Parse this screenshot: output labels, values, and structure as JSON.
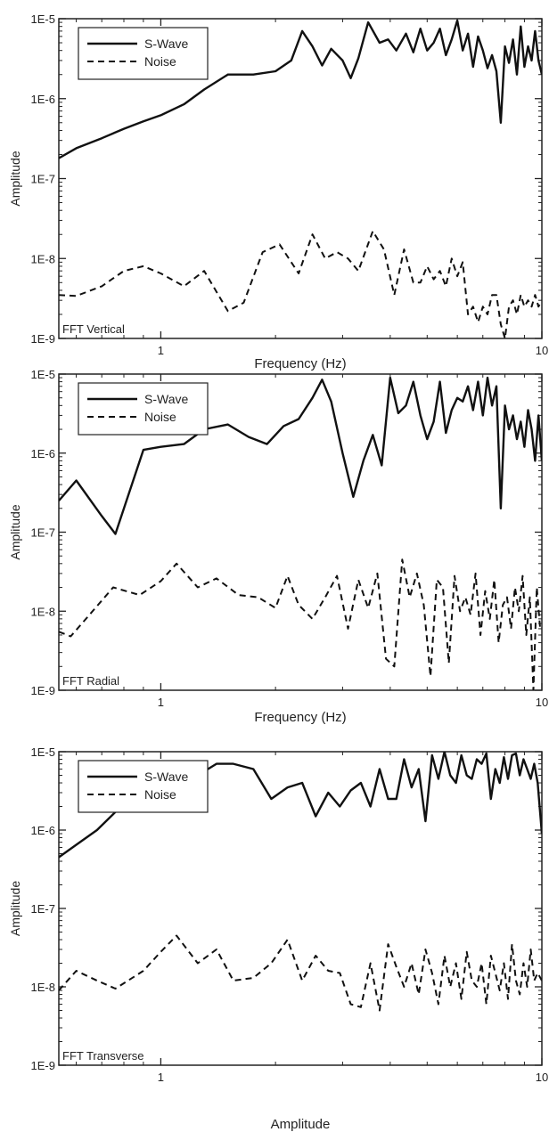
{
  "chart_data": [
    {
      "type": "line",
      "panel_label": "FFT Vertical",
      "xlabel": "Frequency (Hz)",
      "ylabel": "Amplitude",
      "xscale": "log",
      "yscale": "log",
      "xlim": [
        0.54,
        10
      ],
      "ylim": [
        1e-09,
        1e-05
      ],
      "x_ticks": [
        {
          "v": 1,
          "label": "1"
        },
        {
          "v": 10,
          "label": "10"
        }
      ],
      "y_ticks": [
        {
          "v": 1e-05,
          "label": "1E-5"
        },
        {
          "v": 1e-06,
          "label": "1E-6"
        },
        {
          "v": 1e-07,
          "label": "1E-7"
        },
        {
          "v": 1e-08,
          "label": "1E-8"
        },
        {
          "v": 1e-09,
          "label": "1E-9"
        }
      ],
      "legend_position": "top-left",
      "series": [
        {
          "name": "S-Wave",
          "style": "solid",
          "x": [
            0.54,
            0.6,
            0.7,
            0.8,
            0.9,
            1.0,
            1.15,
            1.3,
            1.5,
            1.75,
            2.0,
            2.2,
            2.35,
            2.5,
            2.65,
            2.8,
            3.0,
            3.15,
            3.3,
            3.5,
            3.75,
            3.95,
            4.15,
            4.4,
            4.6,
            4.8,
            5.0,
            5.2,
            5.4,
            5.6,
            5.8,
            6.0,
            6.2,
            6.4,
            6.6,
            6.8,
            7.0,
            7.2,
            7.4,
            7.6,
            7.8,
            8.0,
            8.2,
            8.4,
            8.6,
            8.8,
            9.0,
            9.2,
            9.4,
            9.6,
            9.8,
            10.0
          ],
          "y": [
            1.8e-07,
            2.4e-07,
            3.2e-07,
            4.2e-07,
            5.2e-07,
            6.2e-07,
            8.5e-07,
            1.3e-06,
            2e-06,
            2e-06,
            2.2e-06,
            3e-06,
            7e-06,
            4.5e-06,
            2.6e-06,
            4.2e-06,
            3e-06,
            1.8e-06,
            3.2e-06,
            9e-06,
            5e-06,
            5.5e-06,
            4e-06,
            6.5e-06,
            3.8e-06,
            7.5e-06,
            4e-06,
            5e-06,
            7.5e-06,
            3.5e-06,
            5.5e-06,
            9.5e-06,
            4e-06,
            6.5e-06,
            2.5e-06,
            6e-06,
            4e-06,
            2.4e-06,
            3.5e-06,
            2.2e-06,
            5e-07,
            4.5e-06,
            2.8e-06,
            5.5e-06,
            2e-06,
            8e-06,
            2.5e-06,
            4.5e-06,
            3e-06,
            7e-06,
            3e-06,
            2e-06
          ]
        },
        {
          "name": "Noise",
          "style": "dashed",
          "x": [
            0.54,
            0.6,
            0.7,
            0.8,
            0.9,
            1.0,
            1.15,
            1.3,
            1.5,
            1.65,
            1.85,
            2.05,
            2.3,
            2.5,
            2.7,
            2.9,
            3.1,
            3.3,
            3.6,
            3.85,
            4.1,
            4.35,
            4.6,
            4.8,
            5.0,
            5.2,
            5.4,
            5.6,
            5.8,
            6.0,
            6.2,
            6.4,
            6.6,
            6.8,
            7.0,
            7.2,
            7.4,
            7.6,
            7.8,
            8.0,
            8.2,
            8.4,
            8.6,
            8.8,
            9.0,
            9.2,
            9.4,
            9.6,
            9.8,
            10.0
          ],
          "y": [
            3.5e-09,
            3.4e-09,
            4.5e-09,
            7e-09,
            8e-09,
            6.5e-09,
            4.5e-09,
            7e-09,
            2.2e-09,
            2.8e-09,
            1.2e-08,
            1.5e-08,
            6.5e-09,
            2e-08,
            1e-08,
            1.2e-08,
            1e-08,
            7e-09,
            2.2e-08,
            1.3e-08,
            3.5e-09,
            1.3e-08,
            5e-09,
            5e-09,
            8e-09,
            5.5e-09,
            7e-09,
            4.5e-09,
            1e-08,
            6e-09,
            9e-09,
            2e-09,
            2.5e-09,
            1.6e-09,
            2.5e-09,
            2e-09,
            3.5e-09,
            3.5e-09,
            1.5e-09,
            1e-09,
            2.5e-09,
            3e-09,
            2e-09,
            3.5e-09,
            2.5e-09,
            3e-09,
            2.5e-09,
            3.5e-09,
            2.5e-09,
            3e-09
          ]
        }
      ]
    },
    {
      "type": "line",
      "panel_label": "FFT Radial",
      "xlabel": "Frequency (Hz)",
      "ylabel": "Amplitude",
      "xscale": "log",
      "yscale": "log",
      "xlim": [
        0.54,
        10
      ],
      "ylim": [
        1e-09,
        1e-05
      ],
      "x_ticks": [
        {
          "v": 1,
          "label": "1"
        },
        {
          "v": 10,
          "label": "10"
        }
      ],
      "y_ticks": [
        {
          "v": 1e-05,
          "label": "1E-5"
        },
        {
          "v": 1e-06,
          "label": "1E-6"
        },
        {
          "v": 1e-07,
          "label": "1E-7"
        },
        {
          "v": 1e-08,
          "label": "1E-8"
        },
        {
          "v": 1e-09,
          "label": "1E-9"
        }
      ],
      "legend_position": "top-left",
      "series": [
        {
          "name": "S-Wave",
          "style": "solid",
          "x": [
            0.54,
            0.6,
            0.7,
            0.76,
            0.9,
            1.0,
            1.15,
            1.3,
            1.5,
            1.7,
            1.9,
            2.1,
            2.3,
            2.5,
            2.65,
            2.8,
            3.0,
            3.2,
            3.4,
            3.6,
            3.8,
            4.0,
            4.2,
            4.4,
            4.6,
            4.8,
            5.0,
            5.2,
            5.4,
            5.6,
            5.8,
            6.0,
            6.2,
            6.4,
            6.6,
            6.8,
            7.0,
            7.2,
            7.4,
            7.6,
            7.8,
            8.0,
            8.2,
            8.4,
            8.6,
            8.8,
            9.0,
            9.2,
            9.4,
            9.6,
            9.8,
            10.0
          ],
          "y": [
            2.5e-07,
            4.5e-07,
            1.6e-07,
            9.5e-08,
            1.1e-06,
            1.2e-06,
            1.3e-06,
            2e-06,
            2.3e-06,
            1.6e-06,
            1.3e-06,
            2.2e-06,
            2.7e-06,
            5e-06,
            8.5e-06,
            4.5e-06,
            1e-06,
            2.8e-07,
            8e-07,
            1.7e-06,
            7e-07,
            9e-06,
            3.2e-06,
            4e-06,
            8e-06,
            3e-06,
            1.5e-06,
            2.5e-06,
            8e-06,
            1.8e-06,
            3.5e-06,
            5e-06,
            4.5e-06,
            7e-06,
            3.5e-06,
            8e-06,
            3e-06,
            9e-06,
            4e-06,
            7e-06,
            2e-07,
            4e-06,
            2e-06,
            3e-06,
            1.5e-06,
            2.5e-06,
            1.2e-06,
            3.5e-06,
            2e-06,
            8e-07,
            3e-06,
            8e-07
          ]
        },
        {
          "name": "Noise",
          "style": "dashed",
          "x": [
            0.54,
            0.58,
            0.65,
            0.75,
            0.88,
            1.0,
            1.1,
            1.25,
            1.4,
            1.6,
            1.8,
            2.0,
            2.15,
            2.3,
            2.5,
            2.7,
            2.9,
            3.1,
            3.3,
            3.5,
            3.7,
            3.9,
            4.1,
            4.3,
            4.5,
            4.7,
            4.9,
            5.1,
            5.3,
            5.5,
            5.7,
            5.9,
            6.1,
            6.3,
            6.5,
            6.7,
            6.9,
            7.1,
            7.3,
            7.5,
            7.7,
            7.9,
            8.1,
            8.3,
            8.5,
            8.7,
            8.9,
            9.1,
            9.3,
            9.5,
            9.7,
            9.9
          ],
          "y": [
            5.5e-09,
            4.8e-09,
            9e-09,
            2e-08,
            1.6e-08,
            2.4e-08,
            4e-08,
            2e-08,
            2.6e-08,
            1.6e-08,
            1.5e-08,
            1.1e-08,
            2.8e-08,
            1.2e-08,
            8e-09,
            1.5e-08,
            2.8e-08,
            6e-09,
            2.5e-08,
            1.1e-08,
            3e-08,
            2.5e-09,
            2e-09,
            4.5e-08,
            1.5e-08,
            3e-08,
            1.2e-08,
            1.5e-09,
            2.5e-08,
            2e-08,
            2.2e-09,
            2.8e-08,
            1e-08,
            1.5e-08,
            9e-09,
            3e-08,
            5e-09,
            1.8e-08,
            8e-09,
            2.5e-08,
            4e-09,
            1.2e-08,
            1.5e-08,
            6e-09,
            2e-08,
            1e-08,
            2.8e-08,
            5e-09,
            1.5e-08,
            1e-09,
            2e-08,
            6e-09
          ]
        }
      ]
    },
    {
      "type": "line",
      "panel_label": "FFT Transverse",
      "xlabel": "Amplitude",
      "ylabel": "Amplitude",
      "xscale": "log",
      "yscale": "log",
      "xlim": [
        0.54,
        10
      ],
      "ylim": [
        1e-09,
        1e-05
      ],
      "x_ticks": [
        {
          "v": 1,
          "label": "1"
        },
        {
          "v": 10,
          "label": "10"
        }
      ],
      "y_ticks": [
        {
          "v": 1e-05,
          "label": "1E-5"
        },
        {
          "v": 1e-06,
          "label": "1E-6"
        },
        {
          "v": 1e-07,
          "label": "1E-7"
        },
        {
          "v": 1e-08,
          "label": "1E-8"
        },
        {
          "v": 1e-09,
          "label": "1E-9"
        }
      ],
      "legend_position": "top-left",
      "series": [
        {
          "name": "S-Wave",
          "style": "solid",
          "x": [
            0.54,
            0.6,
            0.68,
            0.76,
            0.9,
            1.0,
            1.1,
            1.25,
            1.4,
            1.55,
            1.75,
            1.95,
            2.15,
            2.35,
            2.55,
            2.75,
            2.95,
            3.15,
            3.35,
            3.55,
            3.75,
            3.95,
            4.15,
            4.35,
            4.55,
            4.75,
            4.95,
            5.15,
            5.35,
            5.55,
            5.75,
            5.95,
            6.15,
            6.35,
            6.55,
            6.75,
            6.95,
            7.15,
            7.35,
            7.55,
            7.75,
            7.95,
            8.15,
            8.35,
            8.55,
            8.75,
            8.95,
            9.15,
            9.35,
            9.55,
            9.75,
            10.0
          ],
          "y": [
            4.5e-07,
            6.5e-07,
            1e-06,
            1.7e-06,
            2.5e-06,
            3e-06,
            4e-06,
            5e-06,
            7e-06,
            7e-06,
            6e-06,
            2.5e-06,
            3.5e-06,
            4e-06,
            1.5e-06,
            3e-06,
            2e-06,
            3.2e-06,
            4e-06,
            2e-06,
            6e-06,
            2.5e-06,
            2.5e-06,
            8e-06,
            3.5e-06,
            6e-06,
            1.3e-06,
            9e-06,
            4.5e-06,
            1e-05,
            5e-06,
            4e-06,
            9e-06,
            5e-06,
            4.5e-06,
            8e-06,
            7e-06,
            9.5e-06,
            2.5e-06,
            6e-06,
            4e-06,
            8.5e-06,
            4.5e-06,
            9e-06,
            9.5e-06,
            5e-06,
            8e-06,
            6e-06,
            4.5e-06,
            7e-06,
            4e-06,
            9e-07
          ]
        },
        {
          "name": "Noise",
          "style": "dashed",
          "x": [
            0.54,
            0.6,
            0.68,
            0.76,
            0.9,
            1.0,
            1.1,
            1.25,
            1.4,
            1.55,
            1.75,
            1.95,
            2.15,
            2.35,
            2.55,
            2.75,
            2.95,
            3.15,
            3.35,
            3.55,
            3.75,
            3.95,
            4.15,
            4.35,
            4.55,
            4.75,
            4.95,
            5.15,
            5.35,
            5.55,
            5.75,
            5.95,
            6.15,
            6.35,
            6.55,
            6.75,
            6.95,
            7.15,
            7.35,
            7.55,
            7.75,
            7.95,
            8.15,
            8.35,
            8.55,
            8.75,
            8.95,
            9.15,
            9.35,
            9.55,
            9.75,
            10.0
          ],
          "y": [
            9e-09,
            1.6e-08,
            1.2e-08,
            9.5e-09,
            1.6e-08,
            2.8e-08,
            4.5e-08,
            2e-08,
            3e-08,
            1.2e-08,
            1.3e-08,
            2e-08,
            4e-08,
            1.2e-08,
            2.5e-08,
            1.6e-08,
            1.5e-08,
            6e-09,
            5.5e-09,
            2e-08,
            5e-09,
            3.5e-08,
            1.8e-08,
            1e-08,
            2e-08,
            8e-09,
            3e-08,
            1.5e-08,
            6e-09,
            2.5e-08,
            1e-08,
            2e-08,
            7e-09,
            2.8e-08,
            1.2e-08,
            1e-08,
            2e-08,
            6e-09,
            2.5e-08,
            1.5e-08,
            9e-09,
            2e-08,
            7e-09,
            3.5e-08,
            1.2e-08,
            8e-09,
            2e-08,
            1e-08,
            3e-08,
            1.2e-08,
            1.5e-08,
            1.2e-08
          ]
        }
      ]
    }
  ]
}
